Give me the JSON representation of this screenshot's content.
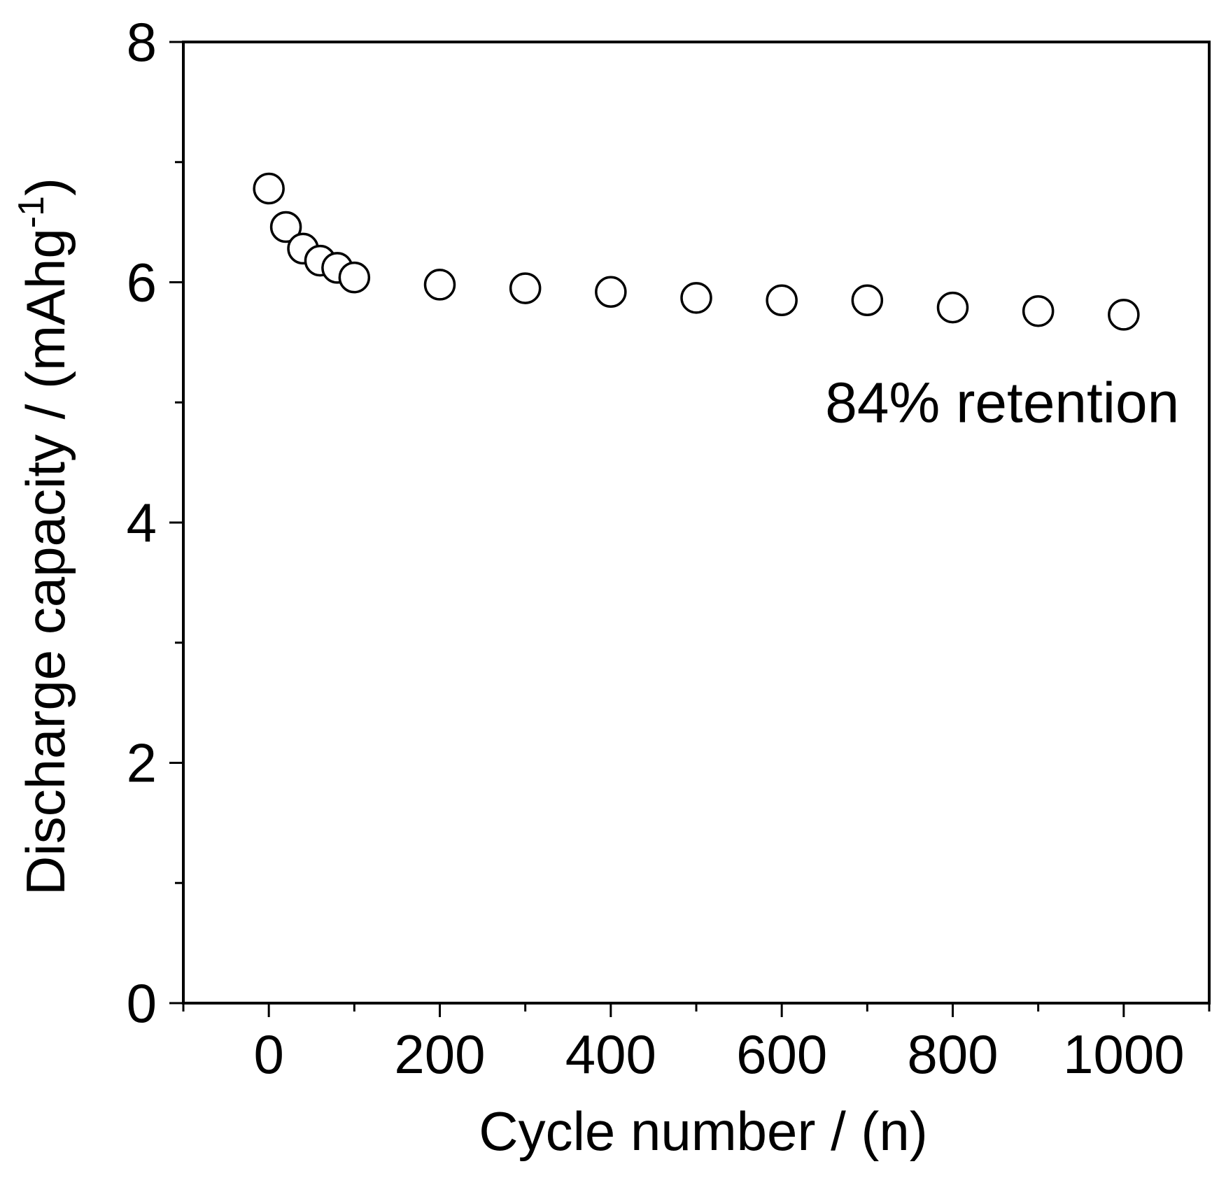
{
  "chart_data": {
    "type": "scatter",
    "title": "",
    "xlabel": "Cycle number / (n)",
    "ylabel_main": "Discharge capacity / (mAhg",
    "ylabel_sup": "-1",
    "ylabel_close": ")",
    "xlim": [
      -100,
      1100
    ],
    "ylim": [
      0,
      8
    ],
    "xticks": [
      0,
      200,
      400,
      600,
      800,
      1000
    ],
    "xtick_labels": [
      "0",
      "200",
      "400",
      "600",
      "800",
      "1000"
    ],
    "x_minor_ticks": [
      -100,
      100,
      300,
      500,
      700,
      900,
      1100
    ],
    "yticks": [
      0,
      2,
      4,
      6,
      8
    ],
    "ytick_labels": [
      "0",
      "2",
      "4",
      "6",
      "8"
    ],
    "y_minor_ticks": [
      1,
      3,
      5,
      7
    ],
    "grid": false,
    "marker": "open-circle",
    "series": [
      {
        "x": [
          0,
          20,
          40,
          60,
          80,
          100,
          200,
          300,
          400,
          500,
          600,
          700,
          800,
          900,
          1000
        ],
        "y": [
          6.78,
          6.46,
          6.28,
          6.18,
          6.12,
          6.04,
          5.98,
          5.95,
          5.92,
          5.87,
          5.85,
          5.85,
          5.79,
          5.76,
          5.73
        ]
      }
    ],
    "annotations": [
      {
        "text": "84% retention",
        "x": 1065,
        "y": 5.0
      }
    ]
  }
}
